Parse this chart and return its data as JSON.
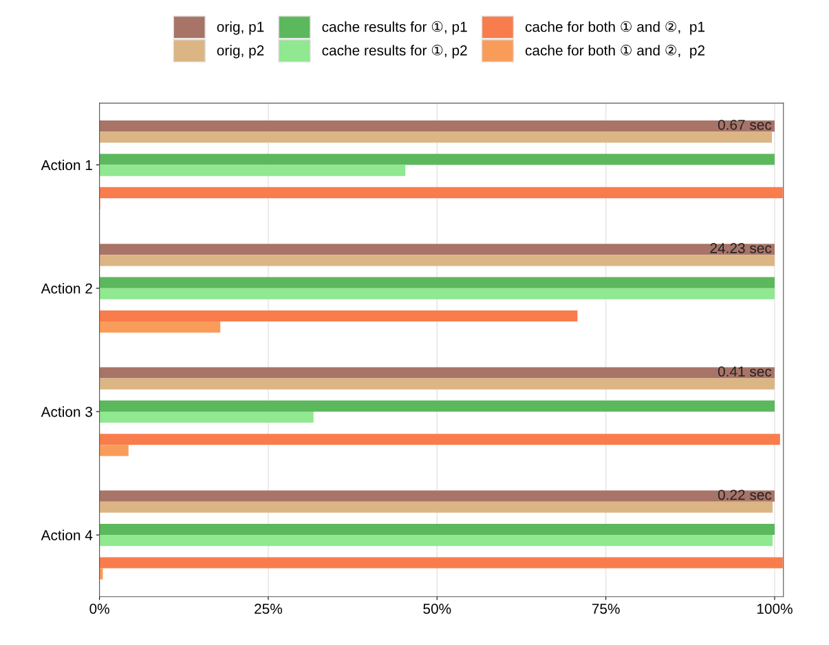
{
  "chart_data": {
    "type": "bar",
    "orientation": "horizontal",
    "categories": [
      "Action 1",
      "Action 2",
      "Action 3",
      "Action 4"
    ],
    "series": [
      {
        "name": "orig, p1",
        "color": "#a87468",
        "values": [
          100,
          100,
          100,
          100
        ]
      },
      {
        "name": "orig, p2",
        "color": "#dbb584",
        "values": [
          99.6,
          100,
          100,
          99.7
        ]
      },
      {
        "name": "cache results for ①, p1",
        "color": "#5cb85c",
        "values": [
          100,
          100,
          100,
          100
        ]
      },
      {
        "name": "cache results for ①, p2",
        "color": "#90e890",
        "values": [
          45.3,
          100,
          31.7,
          99.7
        ]
      },
      {
        "name": "cache for both ① and ②,  p1",
        "color": "#f97c4d",
        "values": [
          101.2,
          70.8,
          100.8,
          101.2
        ]
      },
      {
        "name": "cache for both ① and ②,  p2",
        "color": "#f99c5a",
        "values": [
          0.1,
          17.9,
          4.3,
          0.5
        ]
      }
    ],
    "xlim": [
      0,
      101.3
    ],
    "xticks": [
      {
        "value": 0,
        "label": "0%"
      },
      {
        "value": 25,
        "label": "25%"
      },
      {
        "value": 50,
        "label": "50%"
      },
      {
        "value": 75,
        "label": "75%"
      },
      {
        "value": 100,
        "label": "100%"
      }
    ],
    "annotations": [
      {
        "text": "0.67 sec",
        "y": "Action 1"
      },
      {
        "text": "24.23 sec",
        "y": "Action 2"
      },
      {
        "text": "0.41 sec",
        "y": "Action 3"
      },
      {
        "text": "0.22 sec",
        "y": "Action 4"
      }
    ],
    "grid": "x",
    "legend": "top"
  }
}
